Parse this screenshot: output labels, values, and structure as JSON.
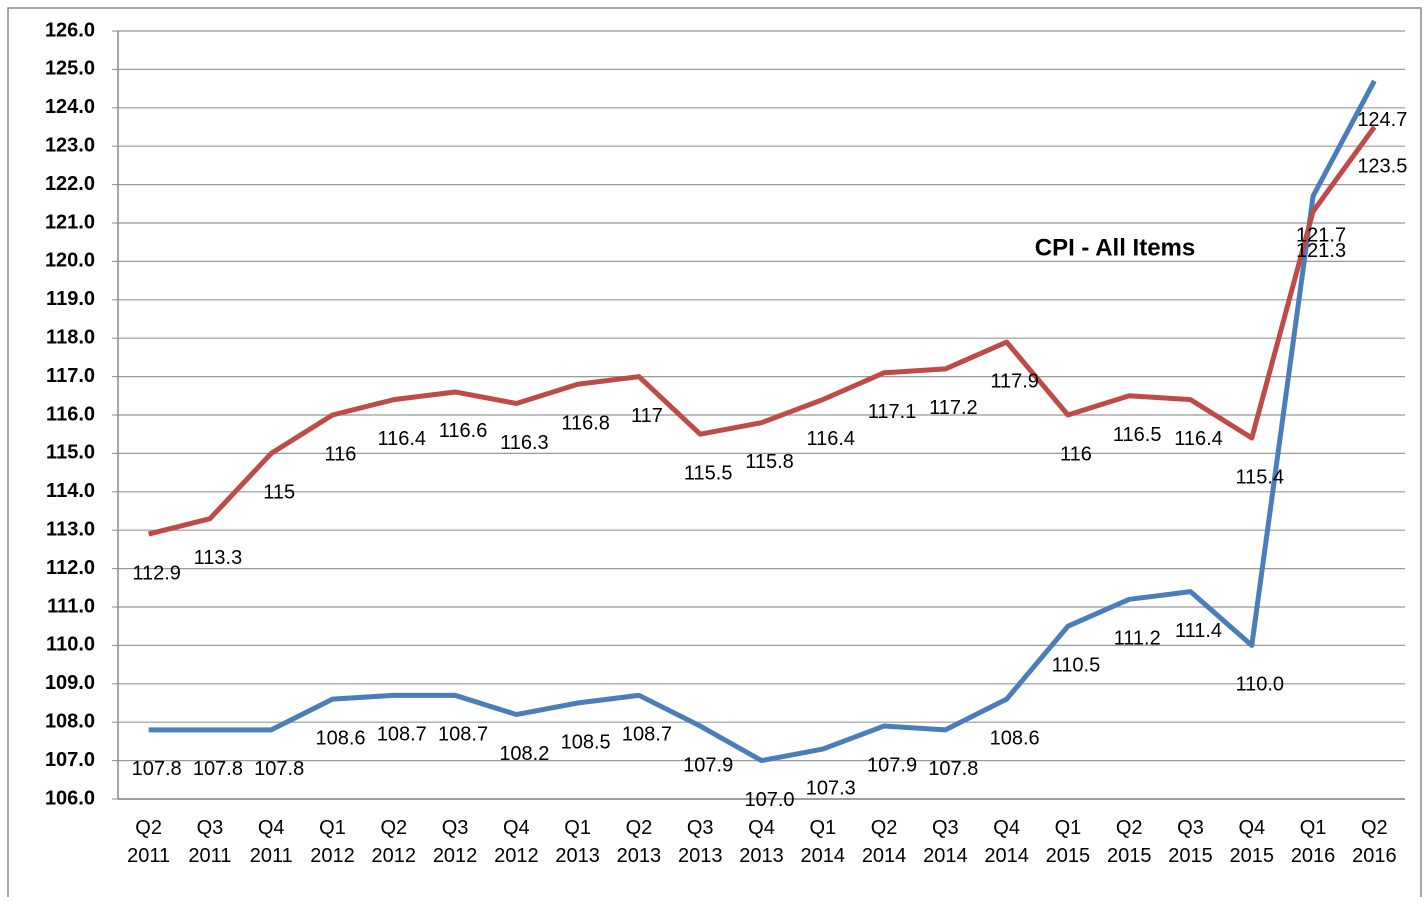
{
  "chart_data": {
    "type": "line",
    "annotation": "CPI - All Items",
    "categories": [
      "Q2 2011",
      "Q3 2011",
      "Q4 2011",
      "Q1 2012",
      "Q2 2012",
      "Q3 2012",
      "Q4 2012",
      "Q1 2013",
      "Q2 2013",
      "Q3 2013",
      "Q4 2013",
      "Q1 2014",
      "Q2 2014",
      "Q3 2014",
      "Q4 2014",
      "Q1 2015",
      "Q2 2015",
      "Q3 2015",
      "Q4 2015",
      "Q1 2016",
      "Q2 2016"
    ],
    "series": [
      {
        "color": "#4a7ebb",
        "values": [
          107.8,
          107.8,
          107.8,
          108.6,
          108.7,
          108.7,
          108.2,
          108.5,
          108.7,
          107.9,
          107,
          107.3,
          107.9,
          107.8,
          108.6,
          110.5,
          111.2,
          111.4,
          110,
          121.7,
          124.7
        ],
        "value_labels": [
          "107.8",
          "107.8",
          "107.8",
          "108.6",
          "108.7",
          "108.7",
          "108.2",
          "108.5",
          "108.7",
          "107.9",
          "107.0",
          "107.3",
          "107.9",
          "107.8",
          "108.6",
          "110.5",
          "111.2",
          "111.4",
          "110.0",
          "121.7",
          "124.7"
        ]
      },
      {
        "color": "#be4b48",
        "values": [
          112.9,
          113.3,
          115,
          116,
          116.4,
          116.6,
          116.3,
          116.8,
          117,
          115.5,
          115.8,
          116.4,
          117.1,
          117.2,
          117.9,
          116,
          116.5,
          116.4,
          115.4,
          121.3,
          123.5
        ]
      }
    ],
    "ylim": [
      106,
      126
    ],
    "yticks": [
      {
        "value": 106,
        "label": "106.0"
      },
      {
        "value": 107,
        "label": "107.0"
      },
      {
        "value": 108,
        "label": "108.0"
      },
      {
        "value": 109,
        "label": "109.0"
      },
      {
        "value": 110,
        "label": "110.0"
      },
      {
        "value": 111,
        "label": "111.0"
      },
      {
        "value": 112,
        "label": "112.0"
      },
      {
        "value": 113,
        "label": "113.0"
      },
      {
        "value": 114,
        "label": "114.0"
      },
      {
        "value": 115,
        "label": "115.0"
      },
      {
        "value": 116,
        "label": "116.0"
      },
      {
        "value": 117,
        "label": "117.0"
      },
      {
        "value": 118,
        "label": "118.0"
      },
      {
        "value": 119,
        "label": "119.0"
      },
      {
        "value": 120,
        "label": "120.0"
      },
      {
        "value": 121,
        "label": "121.0"
      },
      {
        "value": 122,
        "label": "122.0"
      },
      {
        "value": 123,
        "label": "123.0"
      },
      {
        "value": 124,
        "label": "124.0"
      },
      {
        "value": 125,
        "label": "125.0"
      },
      {
        "value": 126,
        "label": "126.0"
      }
    ],
    "grid": true
  }
}
